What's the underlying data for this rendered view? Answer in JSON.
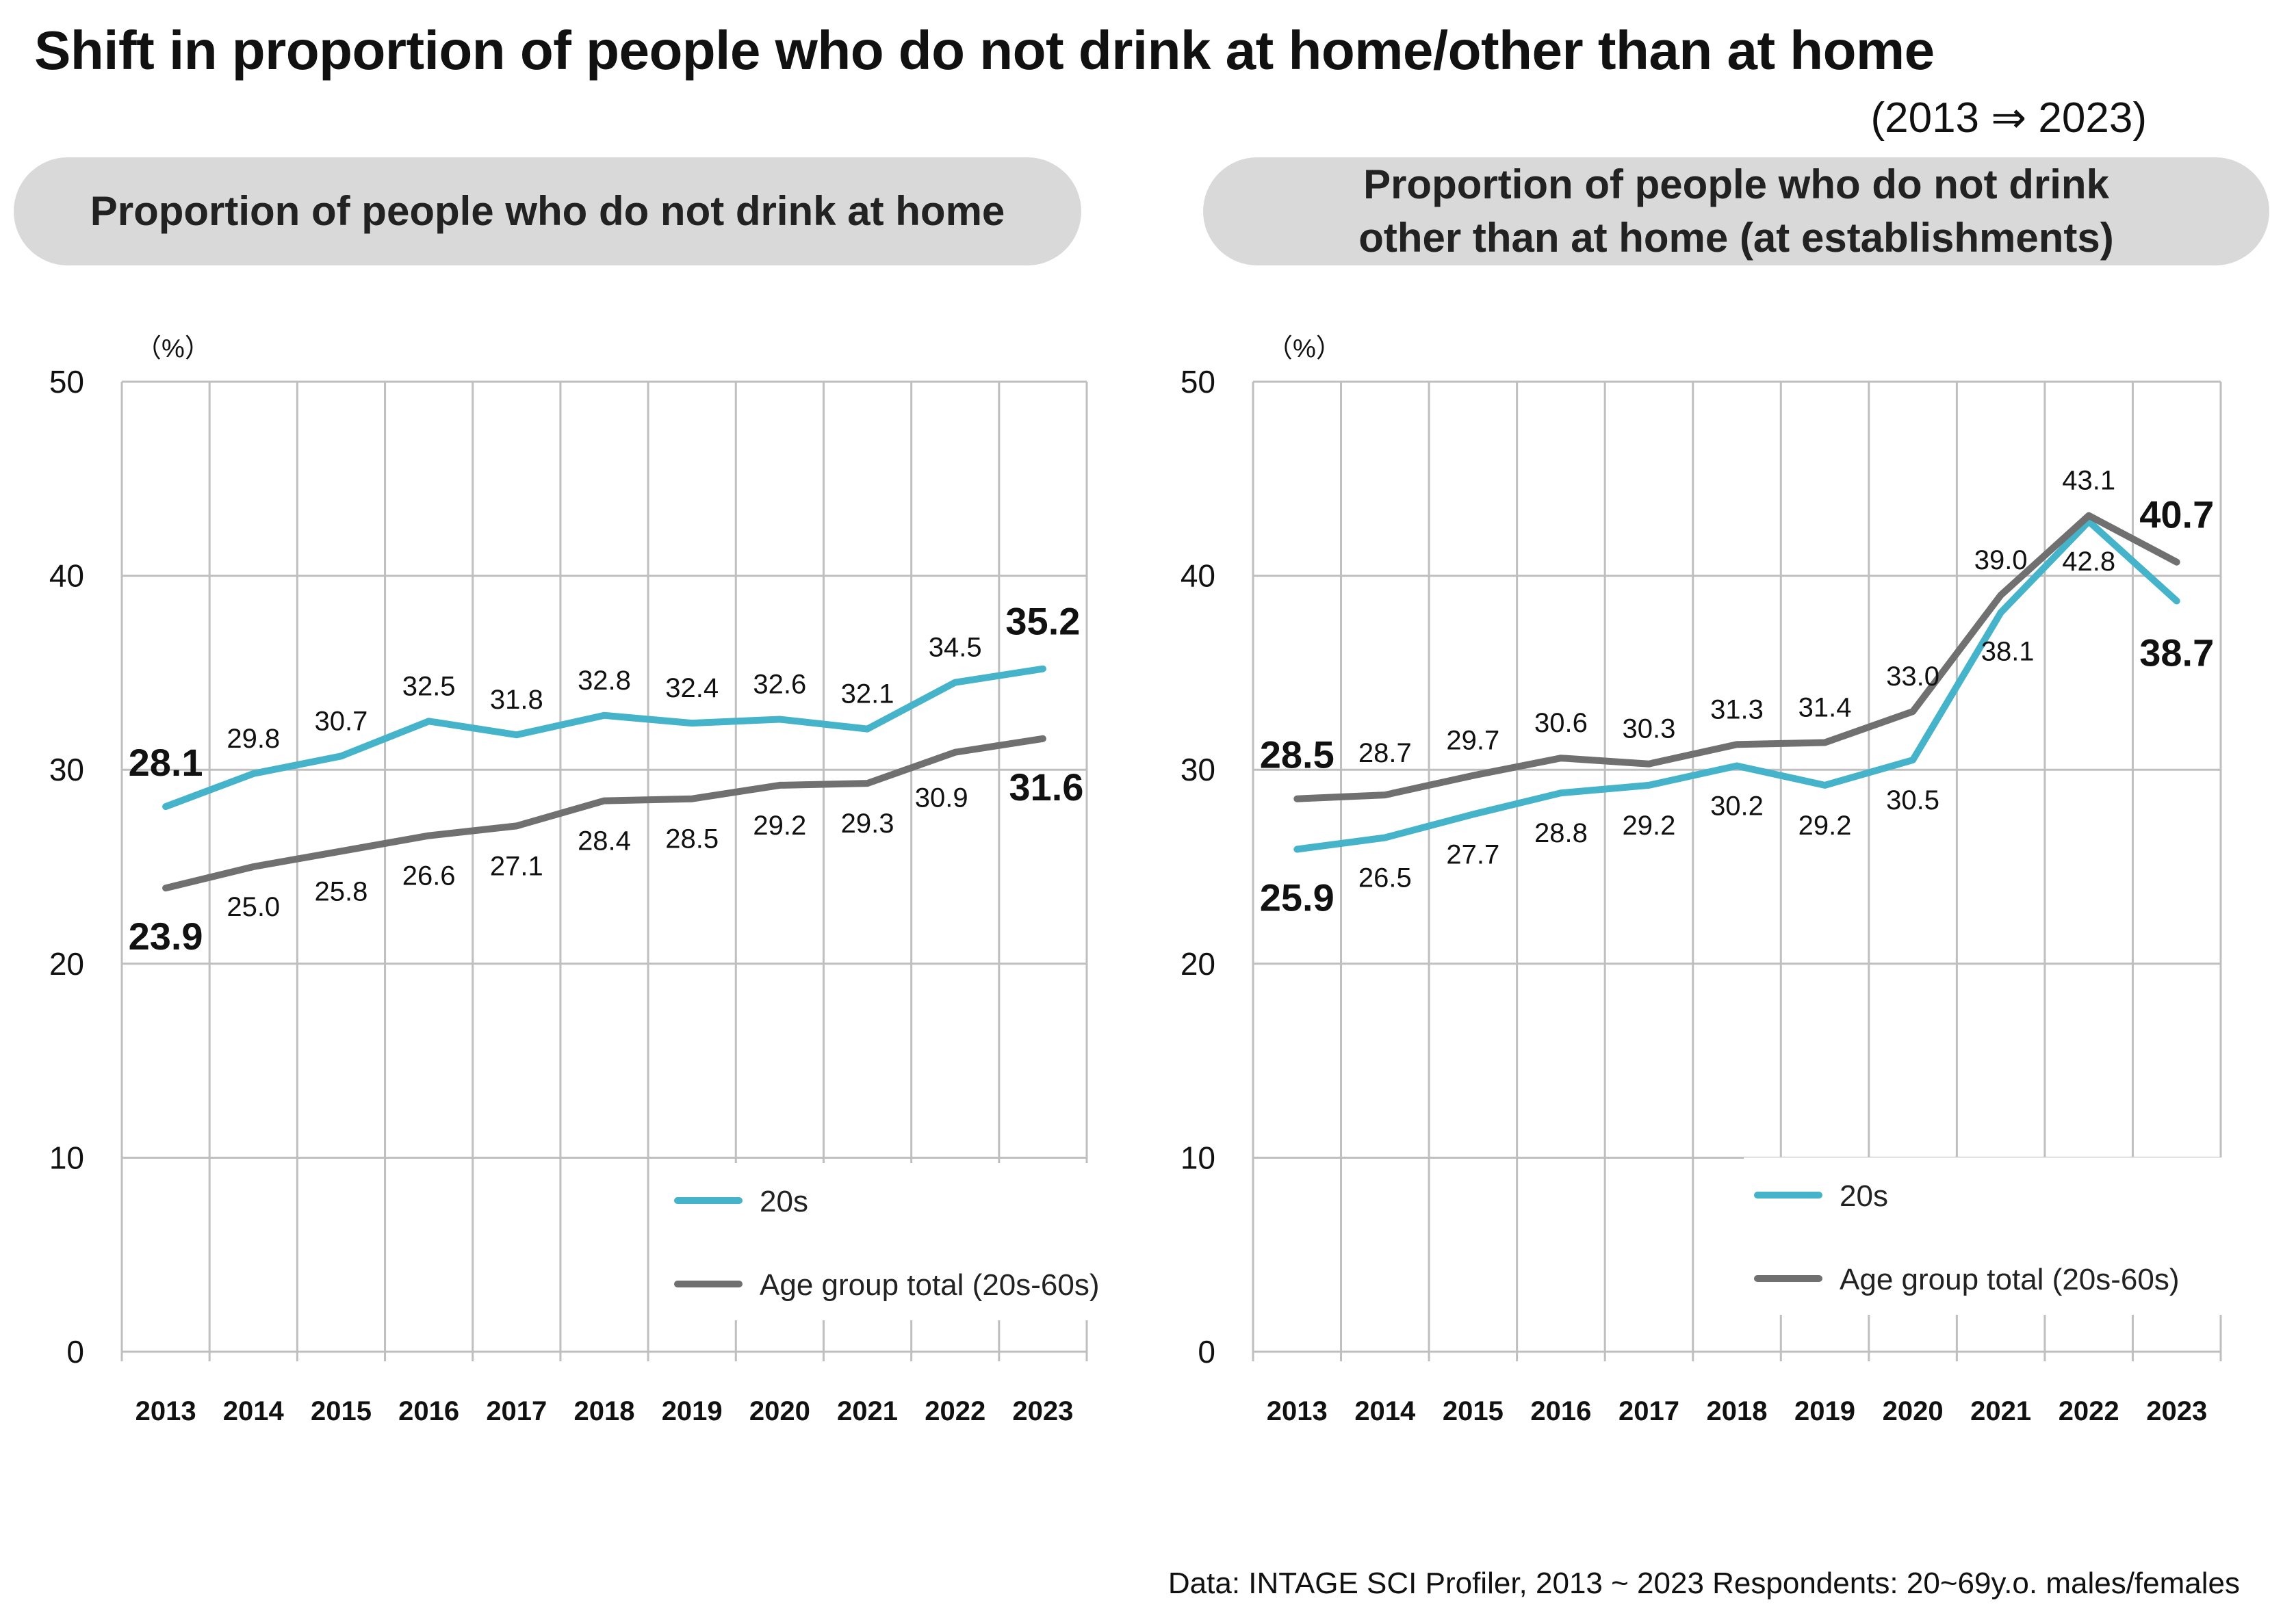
{
  "title": "Shift in proportion of people who do not drink at home/other than at home",
  "subtitle": "(2013 ⇒ 2023)",
  "footer": "Data: INTAGE SCI Profiler, 2013 ~ 2023  Respondents: 20~69y.o. males/females",
  "colors": {
    "series_20s": "#45b3c9",
    "series_total": "#707070",
    "grid": "#bfbfbf",
    "panel_header_bg": "#d9d9d9"
  },
  "chart_data": [
    {
      "type": "line",
      "panel_title_lines": [
        "Proportion of people who do not drink at home"
      ],
      "unit": "（%）",
      "categories": [
        "2013",
        "2014",
        "2015",
        "2016",
        "2017",
        "2018",
        "2019",
        "2020",
        "2021",
        "2022",
        "2023"
      ],
      "ylim": [
        0,
        50
      ],
      "yticks": [
        0,
        10,
        20,
        30,
        40,
        50
      ],
      "grid": true,
      "legend_position": "bottom-right",
      "series": [
        {
          "name": "20s",
          "values": [
            28.1,
            29.8,
            30.7,
            32.5,
            31.8,
            32.8,
            32.4,
            32.6,
            32.1,
            34.5,
            35.2
          ]
        },
        {
          "name": "Age group total (20s-60s)",
          "values": [
            23.9,
            25.0,
            25.8,
            26.6,
            27.1,
            28.4,
            28.5,
            29.2,
            29.3,
            30.9,
            31.6
          ]
        }
      ]
    },
    {
      "type": "line",
      "panel_title_lines": [
        "Proportion of people who do not drink",
        "other than at home (at establishments)"
      ],
      "unit": "（%）",
      "categories": [
        "2013",
        "2014",
        "2015",
        "2016",
        "2017",
        "2018",
        "2019",
        "2020",
        "2021",
        "2022",
        "2023"
      ],
      "ylim": [
        0,
        50
      ],
      "yticks": [
        0,
        10,
        20,
        30,
        40,
        50
      ],
      "grid": true,
      "legend_position": "bottom-right",
      "series": [
        {
          "name": "20s",
          "values": [
            25.9,
            26.5,
            27.7,
            28.8,
            29.2,
            30.2,
            29.2,
            30.5,
            38.1,
            42.8,
            38.7
          ]
        },
        {
          "name": "Age group total (20s-60s)",
          "values": [
            28.5,
            28.7,
            29.7,
            30.6,
            30.3,
            31.3,
            31.4,
            33.0,
            39.0,
            43.1,
            40.7
          ]
        }
      ]
    }
  ]
}
